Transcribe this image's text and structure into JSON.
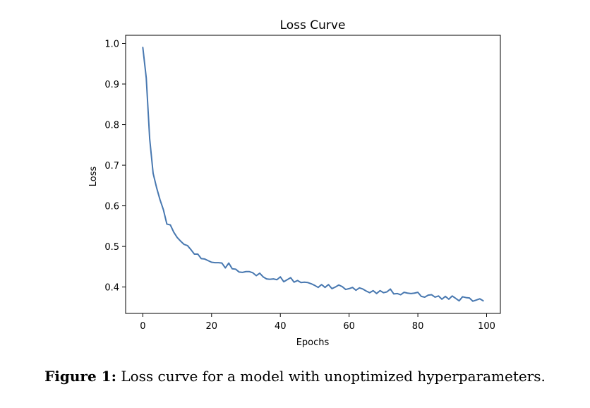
{
  "chart_data": {
    "type": "line",
    "title": "Loss Curve",
    "xlabel": "Epochs",
    "ylabel": "Loss",
    "xlim": [
      -5,
      104
    ],
    "ylim": [
      0.335,
      1.02
    ],
    "xticks": [
      0,
      20,
      40,
      60,
      80,
      100
    ],
    "yticks": [
      0.4,
      0.5,
      0.6,
      0.7,
      0.8,
      0.9,
      1.0
    ],
    "xtick_labels": [
      "0",
      "20",
      "40",
      "60",
      "80",
      "100"
    ],
    "ytick_labels": [
      "0.4",
      "0.5",
      "0.6",
      "0.7",
      "0.8",
      "0.9",
      "1.0"
    ],
    "grid": false,
    "line_color": "#4878b0",
    "series": [
      {
        "x": [
          0,
          1,
          2,
          3,
          4,
          5,
          6,
          7,
          8,
          9,
          10,
          11,
          12,
          13,
          14,
          15,
          16,
          17,
          18,
          19,
          20,
          21,
          22,
          23,
          24,
          25,
          26,
          27,
          28,
          29,
          30,
          31,
          32,
          33,
          34,
          35,
          36,
          37,
          38,
          39,
          40,
          41,
          42,
          43,
          44,
          45,
          46,
          47,
          48,
          49,
          50,
          51,
          52,
          53,
          54,
          55,
          56,
          57,
          58,
          59,
          60,
          61,
          62,
          63,
          64,
          65,
          66,
          67,
          68,
          69,
          70,
          71,
          72,
          73,
          74,
          75,
          76,
          77,
          78,
          79,
          80,
          81,
          82,
          83,
          84,
          85,
          86,
          87,
          88,
          89,
          90,
          91,
          92,
          93,
          94,
          95,
          96,
          97,
          98,
          99
        ],
        "y": [
          0.99,
          0.915,
          0.765,
          0.68,
          0.645,
          0.615,
          0.59,
          0.555,
          0.553,
          0.535,
          0.522,
          0.513,
          0.505,
          0.502,
          0.492,
          0.481,
          0.481,
          0.47,
          0.469,
          0.465,
          0.461,
          0.46,
          0.46,
          0.459,
          0.447,
          0.459,
          0.445,
          0.444,
          0.437,
          0.436,
          0.438,
          0.438,
          0.435,
          0.428,
          0.434,
          0.425,
          0.42,
          0.419,
          0.42,
          0.418,
          0.425,
          0.413,
          0.418,
          0.423,
          0.412,
          0.416,
          0.411,
          0.412,
          0.411,
          0.408,
          0.404,
          0.399,
          0.406,
          0.399,
          0.406,
          0.396,
          0.4,
          0.405,
          0.401,
          0.394,
          0.396,
          0.399,
          0.392,
          0.398,
          0.395,
          0.39,
          0.386,
          0.391,
          0.384,
          0.391,
          0.386,
          0.388,
          0.395,
          0.383,
          0.384,
          0.381,
          0.387,
          0.385,
          0.384,
          0.385,
          0.387,
          0.377,
          0.375,
          0.38,
          0.381,
          0.375,
          0.378,
          0.37,
          0.377,
          0.37,
          0.378,
          0.372,
          0.366,
          0.376,
          0.374,
          0.373,
          0.365,
          0.368,
          0.371,
          0.366
        ]
      }
    ]
  },
  "caption": {
    "label": "Figure 1:",
    "text": " Loss curve for a model with unoptimized hyperparameters."
  }
}
